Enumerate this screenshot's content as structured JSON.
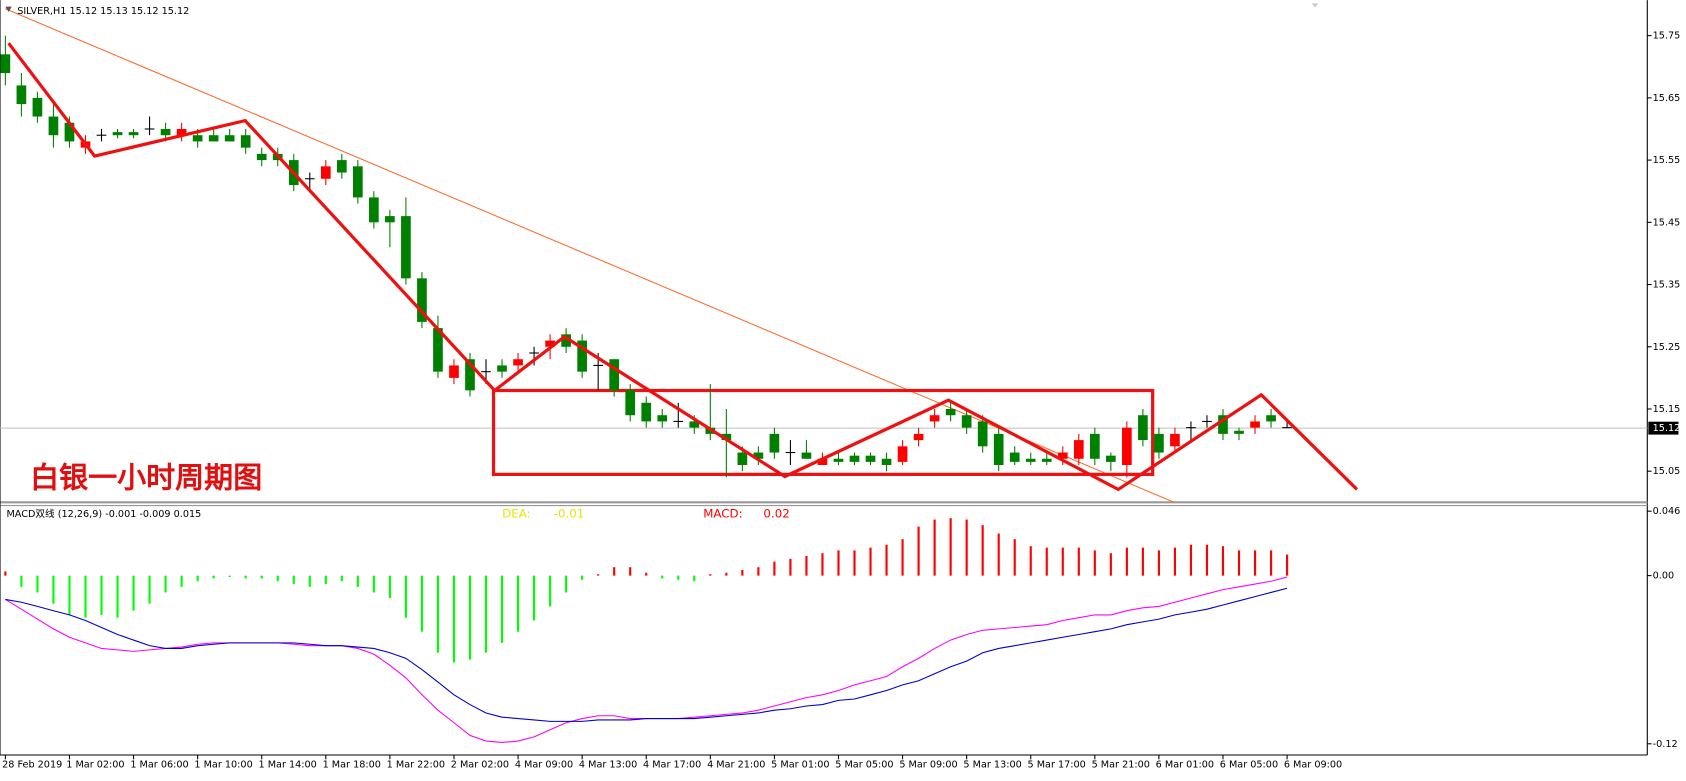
{
  "chart_data": [
    {
      "type": "candlestick",
      "title": "SILVER,H1  15.12 15.13 15.12 15.12",
      "annotation": "白银一小时周期图",
      "up_color": "#ff0000",
      "down_color": "#008000",
      "doji_color": "#000000",
      "ylim": [
        15.0,
        15.807
      ],
      "yticks": [
        15.75,
        15.65,
        15.55,
        15.45,
        15.35,
        15.25,
        15.15,
        15.05
      ],
      "categories": [
        "28 Feb 2019",
        null,
        null,
        null,
        "1 Mar 02:00",
        null,
        null,
        null,
        "1 Mar 06:00",
        null,
        null,
        null,
        "1 Mar 10:00",
        null,
        null,
        null,
        "1 Mar 14:00",
        null,
        null,
        null,
        "1 Mar 18:00",
        null,
        null,
        null,
        "1 Mar 22:00",
        null,
        null,
        null,
        "2 Mar 02:00",
        null,
        null,
        null,
        "4 Mar 09:00",
        null,
        null,
        null,
        "4 Mar 13:00",
        null,
        null,
        null,
        "4 Mar 17:00",
        null,
        null,
        null,
        "4 Mar 21:00",
        null,
        null,
        null,
        "5 Mar 01:00",
        null,
        null,
        null,
        "5 Mar 05:00",
        null,
        null,
        null,
        "5 Mar 09:00",
        null,
        null,
        null,
        "5 Mar 13:00",
        null,
        null,
        null,
        "5 Mar 17:00",
        null,
        null,
        null,
        "5 Mar 21:00",
        null,
        null,
        null,
        "6 Mar 01:00",
        null,
        null,
        null,
        "6 Mar 05:00",
        null,
        null,
        null,
        "6 Mar 09:00"
      ],
      "ohlc": [
        [
          15.72,
          15.75,
          15.67,
          15.69
        ],
        [
          15.67,
          15.69,
          15.62,
          15.64
        ],
        [
          15.65,
          15.66,
          15.61,
          15.62
        ],
        [
          15.62,
          15.64,
          15.57,
          15.59
        ],
        [
          15.61,
          15.62,
          15.57,
          15.58
        ],
        [
          15.57,
          15.59,
          15.56,
          15.58
        ],
        [
          15.59,
          15.6,
          15.58,
          15.59
        ],
        [
          15.595,
          15.6,
          15.585,
          15.59
        ],
        [
          15.595,
          15.6,
          15.585,
          15.59
        ],
        [
          15.6,
          15.62,
          15.59,
          15.6
        ],
        [
          15.6,
          15.61,
          15.58,
          15.59
        ],
        [
          15.59,
          15.61,
          15.58,
          15.6
        ],
        [
          15.59,
          15.6,
          15.57,
          15.58
        ],
        [
          15.59,
          15.6,
          15.58,
          15.58
        ],
        [
          15.59,
          15.6,
          15.58,
          15.58
        ],
        [
          15.59,
          15.6,
          15.56,
          15.57
        ],
        [
          15.56,
          15.57,
          15.54,
          15.55
        ],
        [
          15.56,
          15.57,
          15.54,
          15.55
        ],
        [
          15.55,
          15.56,
          15.5,
          15.51
        ],
        [
          15.52,
          15.53,
          15.5,
          15.52
        ],
        [
          15.52,
          15.55,
          15.51,
          15.54
        ],
        [
          15.55,
          15.56,
          15.52,
          15.53
        ],
        [
          15.54,
          15.55,
          15.48,
          15.49
        ],
        [
          15.49,
          15.5,
          15.44,
          15.45
        ],
        [
          15.46,
          15.47,
          15.41,
          15.45
        ],
        [
          15.46,
          15.49,
          15.35,
          15.36
        ],
        [
          15.36,
          15.37,
          15.28,
          15.29
        ],
        [
          15.28,
          15.3,
          15.2,
          15.21
        ],
        [
          15.2,
          15.23,
          15.19,
          15.22
        ],
        [
          15.23,
          15.24,
          15.17,
          15.18
        ],
        [
          15.21,
          15.23,
          15.19,
          15.21
        ],
        [
          15.22,
          15.23,
          15.2,
          15.21
        ],
        [
          15.22,
          15.24,
          15.21,
          15.23
        ],
        [
          15.24,
          15.25,
          15.22,
          15.24
        ],
        [
          15.25,
          15.27,
          15.23,
          15.26
        ],
        [
          15.27,
          15.28,
          15.24,
          15.25
        ],
        [
          15.26,
          15.27,
          15.2,
          15.21
        ],
        [
          15.22,
          15.24,
          15.18,
          15.22
        ],
        [
          15.23,
          15.23,
          15.17,
          15.18
        ],
        [
          15.18,
          15.19,
          15.13,
          15.14
        ],
        [
          15.16,
          15.17,
          15.12,
          15.13
        ],
        [
          15.14,
          15.15,
          15.12,
          15.13
        ],
        [
          15.13,
          15.16,
          15.12,
          15.13
        ],
        [
          15.13,
          15.14,
          15.11,
          15.12
        ],
        [
          15.12,
          15.19,
          15.1,
          15.11
        ],
        [
          15.11,
          15.15,
          15.04,
          15.1
        ],
        [
          15.08,
          15.09,
          15.05,
          15.06
        ],
        [
          15.08,
          15.09,
          15.06,
          15.07
        ],
        [
          15.11,
          15.12,
          15.07,
          15.08
        ],
        [
          15.08,
          15.1,
          15.06,
          15.08
        ],
        [
          15.08,
          15.1,
          15.07,
          15.07
        ],
        [
          15.06,
          15.08,
          15.06,
          15.07
        ],
        [
          15.07,
          15.08,
          15.06,
          15.065
        ],
        [
          15.075,
          15.08,
          15.06,
          15.065
        ],
        [
          15.075,
          15.08,
          15.06,
          15.065
        ],
        [
          15.07,
          15.08,
          15.05,
          15.06
        ],
        [
          15.065,
          15.1,
          15.06,
          15.09
        ],
        [
          15.1,
          15.12,
          15.09,
          15.11
        ],
        [
          15.13,
          15.15,
          15.12,
          15.14
        ],
        [
          15.15,
          15.16,
          15.13,
          15.14
        ],
        [
          15.14,
          15.15,
          15.11,
          15.12
        ],
        [
          15.13,
          15.14,
          15.08,
          15.09
        ],
        [
          15.11,
          15.12,
          15.05,
          15.06
        ],
        [
          15.08,
          15.09,
          15.06,
          15.065
        ],
        [
          15.07,
          15.08,
          15.06,
          15.065
        ],
        [
          15.07,
          15.08,
          15.06,
          15.065
        ],
        [
          15.07,
          15.09,
          15.06,
          15.08
        ],
        [
          15.07,
          15.11,
          15.06,
          15.1
        ],
        [
          15.11,
          15.12,
          15.06,
          15.07
        ],
        [
          15.075,
          15.08,
          15.05,
          15.065
        ],
        [
          15.06,
          15.13,
          15.04,
          15.12
        ],
        [
          15.14,
          15.15,
          15.09,
          15.1
        ],
        [
          15.11,
          15.12,
          15.07,
          15.08
        ],
        [
          15.09,
          15.12,
          15.08,
          15.11
        ],
        [
          15.12,
          15.13,
          15.1,
          15.12
        ],
        [
          15.13,
          15.14,
          15.12,
          15.13
        ],
        [
          15.14,
          15.15,
          15.1,
          15.11
        ],
        [
          15.115,
          15.12,
          15.1,
          15.11
        ],
        [
          15.12,
          15.14,
          15.11,
          15.13
        ],
        [
          15.14,
          15.15,
          15.12,
          15.13
        ],
        [
          15.12,
          15.13,
          15.12,
          15.12
        ]
      ]
    },
    {
      "type": "macd",
      "title": "MACD双线 (12,26,9) -0.001 -0.009 0.015",
      "ylim": [
        -0.128,
        0.05
      ],
      "yticks": [
        0.046,
        {
          "value": 0,
          "label": "0.00"
        },
        -0.12
      ],
      "legend": [
        {
          "label": "DEA:",
          "value": -0.01,
          "color": "#e6e600"
        },
        {
          "label": "MACD:",
          "value": 0.02,
          "color": "#ff0000"
        }
      ],
      "pos_color": "#ff0000",
      "neg_color": "#00ff00",
      "values": [
        0.003,
        -0.008,
        -0.012,
        -0.02,
        -0.028,
        -0.03,
        -0.028,
        -0.03,
        -0.025,
        -0.02,
        -0.012,
        -0.008,
        -0.004,
        -0.002,
        -0.001,
        -0.002,
        -0.002,
        -0.004,
        -0.006,
        -0.008,
        -0.006,
        -0.004,
        -0.008,
        -0.012,
        -0.016,
        -0.03,
        -0.04,
        -0.055,
        -0.062,
        -0.06,
        -0.055,
        -0.048,
        -0.04,
        -0.032,
        -0.022,
        -0.012,
        -0.003,
        0.001,
        0.006,
        0.006,
        0.002,
        -0.002,
        -0.003,
        -0.004,
        0.001,
        0.002,
        0.004,
        0.006,
        0.01,
        0.012,
        0.014,
        0.016,
        0.018,
        0.018,
        0.02,
        0.022,
        0.026,
        0.035,
        0.04,
        0.041,
        0.04,
        0.036,
        0.03,
        0.026,
        0.021,
        0.02,
        0.02,
        0.02,
        0.018,
        0.016,
        0.02,
        0.02,
        0.018,
        0.02,
        0.022,
        0.022,
        0.021,
        0.018,
        0.018,
        0.018,
        0.015
      ],
      "series": [
        {
          "color": "#ff00ff",
          "values": [
            -0.017,
            -0.024,
            -0.031,
            -0.038,
            -0.044,
            -0.048,
            -0.052,
            -0.053,
            -0.054,
            -0.053,
            -0.052,
            -0.051,
            -0.049,
            -0.048,
            -0.048,
            -0.048,
            -0.048,
            -0.048,
            -0.049,
            -0.05,
            -0.05,
            -0.05,
            -0.052,
            -0.056,
            -0.064,
            -0.073,
            -0.085,
            -0.096,
            -0.105,
            -0.114,
            -0.118,
            -0.119,
            -0.118,
            -0.115,
            -0.11,
            -0.105,
            -0.102,
            -0.1,
            -0.1,
            -0.102,
            -0.102,
            -0.102,
            -0.102,
            -0.101,
            -0.1,
            -0.099,
            -0.098,
            -0.096,
            -0.093,
            -0.09,
            -0.087,
            -0.085,
            -0.082,
            -0.078,
            -0.075,
            -0.072,
            -0.065,
            -0.059,
            -0.052,
            -0.046,
            -0.042,
            -0.039,
            -0.038,
            -0.037,
            -0.036,
            -0.035,
            -0.032,
            -0.03,
            -0.028,
            -0.028,
            -0.025,
            -0.023,
            -0.022,
            -0.019,
            -0.016,
            -0.013,
            -0.01,
            -0.008,
            -0.006,
            -0.004,
            -0.001
          ]
        },
        {
          "color": "#0000cd",
          "values": [
            -0.017,
            -0.019,
            -0.022,
            -0.025,
            -0.028,
            -0.032,
            -0.037,
            -0.042,
            -0.046,
            -0.05,
            -0.052,
            -0.052,
            -0.05,
            -0.049,
            -0.048,
            -0.048,
            -0.048,
            -0.048,
            -0.048,
            -0.049,
            -0.05,
            -0.05,
            -0.051,
            -0.052,
            -0.055,
            -0.059,
            -0.067,
            -0.076,
            -0.085,
            -0.092,
            -0.098,
            -0.101,
            -0.102,
            -0.103,
            -0.104,
            -0.104,
            -0.104,
            -0.103,
            -0.103,
            -0.103,
            -0.102,
            -0.102,
            -0.102,
            -0.102,
            -0.101,
            -0.1,
            -0.099,
            -0.098,
            -0.096,
            -0.095,
            -0.093,
            -0.092,
            -0.089,
            -0.088,
            -0.085,
            -0.082,
            -0.078,
            -0.075,
            -0.07,
            -0.065,
            -0.061,
            -0.055,
            -0.052,
            -0.05,
            -0.048,
            -0.046,
            -0.044,
            -0.042,
            -0.04,
            -0.038,
            -0.035,
            -0.033,
            -0.031,
            -0.028,
            -0.026,
            -0.024,
            -0.021,
            -0.018,
            -0.015,
            -0.012,
            -0.009
          ]
        }
      ]
    }
  ]
}
